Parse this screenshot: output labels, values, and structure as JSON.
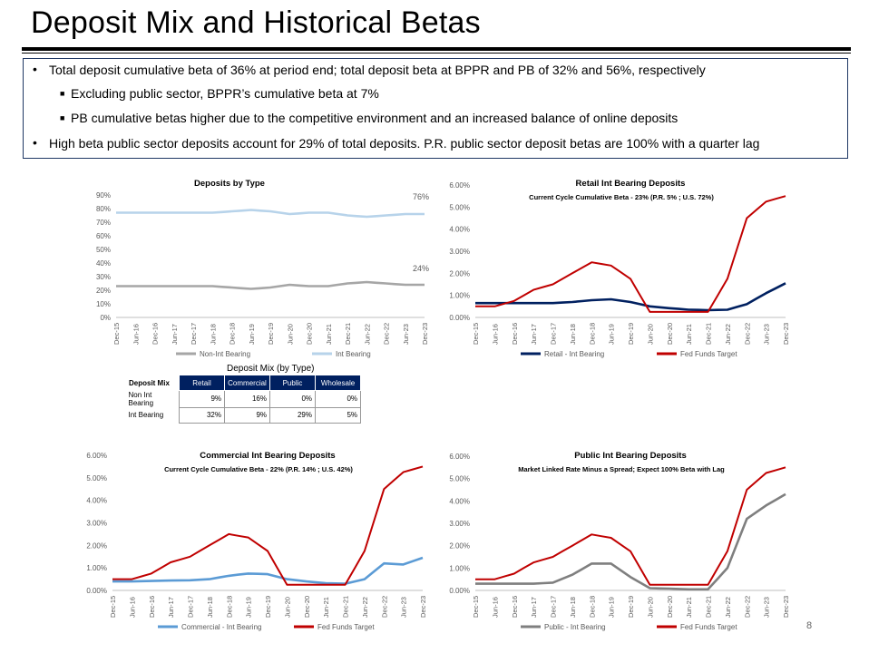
{
  "title": "Deposit Mix and Historical Betas",
  "bullets": [
    "Total deposit cumulative beta of 36% at period end; total deposit beta at BPPR and PB of 32% and 56%, respectively",
    "Excluding public sector, BPPR’s cumulative beta at 7%",
    "PB cumulative betas higher due to the competitive environment and an increased balance of online deposits",
    "High beta public sector deposits account for 29% of total deposits. P.R. public sector deposit betas are 100% with a quarter lag"
  ],
  "page_number": "8",
  "colors": {
    "navy": "#002060",
    "red": "#c00000",
    "lightblue": "#b7d3ea",
    "gray": "#a6a6a6",
    "medblue": "#5b9bd5",
    "dkgray": "#7f7f7f"
  },
  "quarters": [
    "Dec-15",
    "Jun-16",
    "Dec-16",
    "Jun-17",
    "Dec-17",
    "Jun-18",
    "Dec-18",
    "Jun-19",
    "Dec-19",
    "Jun-20",
    "Dec-20",
    "Jun-21",
    "Dec-21",
    "Jun-22",
    "Dec-22",
    "Jun-23",
    "Dec-23"
  ],
  "mix_table": {
    "title": "Deposit Mix (by Type)",
    "header": [
      "Deposit Mix",
      "Retail",
      "Commercial",
      "Public",
      "Wholesale"
    ],
    "rows": [
      {
        "label": "Non Int Bearing",
        "values": [
          "9%",
          "16%",
          "0%",
          "0%"
        ]
      },
      {
        "label": "Int Bearing",
        "values": [
          "32%",
          "9%",
          "29%",
          "5%"
        ]
      }
    ]
  },
  "chart_data": [
    {
      "type": "line",
      "title": "Deposits by Type",
      "subtitle": "",
      "ylim": [
        0,
        90
      ],
      "yticks": [
        "0%",
        "10%",
        "20%",
        "30%",
        "40%",
        "50%",
        "60%",
        "70%",
        "80%",
        "90%"
      ],
      "x": [
        "Dec-15",
        "Jun-16",
        "Dec-16",
        "Jun-17",
        "Dec-17",
        "Jun-18",
        "Dec-18",
        "Jun-19",
        "Dec-19",
        "Jun-20",
        "Dec-20",
        "Jun-21",
        "Dec-21",
        "Jun-22",
        "Dec-22",
        "Jun-23",
        "Dec-23"
      ],
      "series": [
        {
          "name": "Non-Int Bearing",
          "color": "#a6a6a6",
          "values": [
            23,
            23,
            23,
            23,
            23,
            23,
            22,
            21,
            22,
            24,
            23,
            23,
            25,
            26,
            25,
            24,
            24
          ]
        },
        {
          "name": "Int Bearing",
          "color": "#b7d3ea",
          "values": [
            77,
            77,
            77,
            77,
            77,
            77,
            78,
            79,
            78,
            76,
            77,
            77,
            75,
            74,
            75,
            76,
            76
          ]
        }
      ],
      "annotations": [
        "76%",
        "24%"
      ]
    },
    {
      "type": "line",
      "title": "Retail Int Bearing Deposits",
      "subtitle": "Current Cycle Cumulative Beta - 23% (P.R. 5% ; U.S. 72%)",
      "ylim": [
        0,
        6
      ],
      "yticks": [
        "0.00%",
        "1.00%",
        "2.00%",
        "3.00%",
        "4.00%",
        "5.00%",
        "6.00%"
      ],
      "x": [
        "Dec-15",
        "Jun-16",
        "Dec-16",
        "Jun-17",
        "Dec-17",
        "Jun-18",
        "Dec-18",
        "Jun-19",
        "Dec-19",
        "Jun-20",
        "Dec-20",
        "Jun-21",
        "Dec-21",
        "Jun-22",
        "Dec-22",
        "Jun-23",
        "Dec-23"
      ],
      "series": [
        {
          "name": "Retail - Int Bearing",
          "color": "#002060",
          "values": [
            0.65,
            0.65,
            0.65,
            0.65,
            0.65,
            0.7,
            0.78,
            0.82,
            0.7,
            0.5,
            0.42,
            0.35,
            0.33,
            0.35,
            0.6,
            1.1,
            1.55
          ]
        },
        {
          "name": "Fed Funds Target",
          "color": "#c00000",
          "values": [
            0.5,
            0.5,
            0.75,
            1.25,
            1.5,
            2.0,
            2.5,
            2.35,
            1.75,
            0.25,
            0.25,
            0.25,
            0.25,
            1.75,
            4.5,
            5.25,
            5.5
          ]
        }
      ]
    },
    {
      "type": "line",
      "title": "Commercial Int Bearing Deposits",
      "subtitle": "Current Cycle Cumulative Beta - 22% (P.R. 14% ; U.S. 42%)",
      "ylim": [
        0,
        6
      ],
      "yticks": [
        "0.00%",
        "1.00%",
        "2.00%",
        "3.00%",
        "4.00%",
        "5.00%",
        "6.00%"
      ],
      "x": [
        "Dec-15",
        "Jun-16",
        "Dec-16",
        "Jun-17",
        "Dec-17",
        "Jun-18",
        "Dec-18",
        "Jun-19",
        "Dec-19",
        "Jun-20",
        "Dec-20",
        "Jun-21",
        "Dec-21",
        "Jun-22",
        "Dec-22",
        "Jun-23",
        "Dec-23"
      ],
      "series": [
        {
          "name": "Commercial - Int Bearing",
          "color": "#5b9bd5",
          "values": [
            0.4,
            0.4,
            0.42,
            0.44,
            0.45,
            0.5,
            0.65,
            0.75,
            0.72,
            0.5,
            0.4,
            0.32,
            0.3,
            0.5,
            1.2,
            1.15,
            1.45
          ]
        },
        {
          "name": "Fed Funds Target",
          "color": "#c00000",
          "values": [
            0.5,
            0.5,
            0.75,
            1.25,
            1.5,
            2.0,
            2.5,
            2.35,
            1.75,
            0.25,
            0.25,
            0.25,
            0.25,
            1.75,
            4.5,
            5.25,
            5.5
          ]
        }
      ]
    },
    {
      "type": "line",
      "title": "Public Int Bearing Deposits",
      "subtitle": "Market Linked Rate Minus a Spread; Expect 100% Beta with Lag",
      "ylim": [
        0,
        6
      ],
      "yticks": [
        "0.00%",
        "1.00%",
        "2.00%",
        "3.00%",
        "4.00%",
        "5.00%",
        "6.00%"
      ],
      "x": [
        "Dec-15",
        "Jun-16",
        "Dec-16",
        "Jun-17",
        "Dec-17",
        "Jun-18",
        "Dec-18",
        "Jun-19",
        "Dec-19",
        "Jun-20",
        "Dec-20",
        "Jun-21",
        "Dec-21",
        "Jun-22",
        "Dec-22",
        "Jun-23",
        "Dec-23"
      ],
      "series": [
        {
          "name": "Public - Int Bearing",
          "color": "#7f7f7f",
          "values": [
            0.3,
            0.3,
            0.3,
            0.3,
            0.35,
            0.7,
            1.2,
            1.2,
            0.6,
            0.1,
            0.08,
            0.05,
            0.05,
            1.0,
            3.2,
            3.8,
            4.3
          ]
        },
        {
          "name": "Fed Funds Target",
          "color": "#c00000",
          "values": [
            0.5,
            0.5,
            0.75,
            1.25,
            1.5,
            2.0,
            2.5,
            2.35,
            1.75,
            0.25,
            0.25,
            0.25,
            0.25,
            1.75,
            4.5,
            5.25,
            5.5
          ]
        }
      ]
    }
  ]
}
